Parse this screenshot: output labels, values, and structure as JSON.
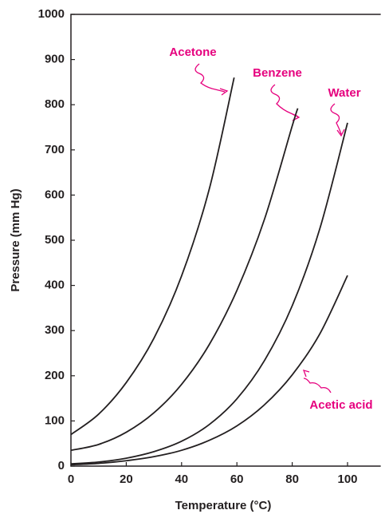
{
  "chart_data": {
    "type": "line",
    "x_label": "Temperature (°C)",
    "y_label": "Pressure (mm Hg)",
    "xlim": [
      0,
      112
    ],
    "ylim": [
      0,
      1000
    ],
    "xticks": [
      0,
      20,
      40,
      60,
      80,
      100
    ],
    "yticks": [
      0,
      100,
      200,
      300,
      400,
      500,
      600,
      700,
      800,
      900,
      1000
    ],
    "grid": false,
    "label_color": "#e6007e",
    "series": [
      {
        "name": "Acetone",
        "color": "#231f20",
        "x": [
          0,
          10,
          20,
          30,
          40,
          50,
          59
        ],
        "values": [
          70,
          115,
          185,
          283,
          421,
          613,
          860
        ]
      },
      {
        "name": "Benzene",
        "color": "#231f20",
        "x": [
          0,
          10,
          20,
          30,
          40,
          50,
          60,
          70,
          80,
          82
        ],
        "values": [
          35,
          48,
          75,
          118,
          181,
          269,
          389,
          547,
          753,
          792
        ]
      },
      {
        "name": "Water",
        "color": "#231f20",
        "x": [
          0,
          10,
          20,
          30,
          40,
          50,
          60,
          70,
          80,
          90,
          100
        ],
        "values": [
          5,
          9,
          17.5,
          32,
          55,
          92,
          149,
          234,
          355,
          526,
          760
        ]
      },
      {
        "name": "Acetic acid",
        "color": "#231f20",
        "x": [
          0,
          10,
          20,
          30,
          40,
          50,
          60,
          70,
          80,
          90,
          100
        ],
        "values": [
          3,
          6,
          12,
          21,
          35,
          57,
          89,
          136,
          202,
          293,
          422
        ]
      }
    ]
  }
}
